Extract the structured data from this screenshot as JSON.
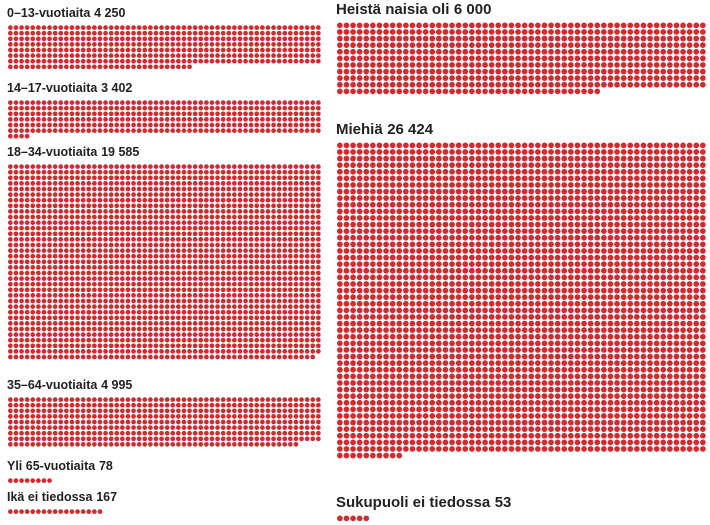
{
  "columns": [
    {
      "groups": [
        {
          "name": "0–13-vuotiaita",
          "value": 4250,
          "value_label": "4 250"
        },
        {
          "name": "14–17-vuotiaita",
          "value": 3402,
          "value_label": "3 402"
        },
        {
          "name": "18–34-vuotiaita",
          "value": 19585,
          "value_label": "19 585"
        },
        {
          "name": "35–64-vuotiaita",
          "value": 4995,
          "value_label": "4 995"
        },
        {
          "name": "Yli 65-vuotiaita",
          "value": 78
        },
        {
          "name": "Ikä ei tiedossa",
          "value": 167
        }
      ]
    },
    {
      "groups": [
        {
          "name": "Heistä naisia oli",
          "value": 6000,
          "value_label": "6 000"
        },
        {
          "name": "Miehiä",
          "value": 26424,
          "value_label": "26 424"
        },
        {
          "name": "Sukupuoli ei tiedossa",
          "value": 53
        }
      ]
    }
  ],
  "color": "#d22a2f"
}
